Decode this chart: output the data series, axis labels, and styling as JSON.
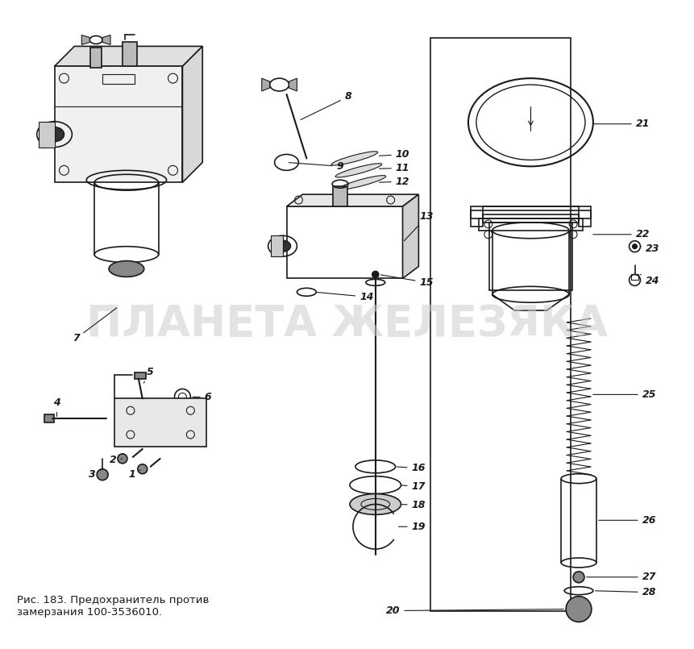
{
  "title": "Рис. 183. Предохранитель против\nзамерзания 100-3536010.",
  "watermark": "ПЛАНЕТА ЖЕЛЕЗЯКА",
  "bg_color": "#ffffff",
  "line_color": "#1a1a1a",
  "watermark_color": "#cccccc",
  "fig_width": 8.62,
  "fig_height": 8.05,
  "dpi": 100
}
